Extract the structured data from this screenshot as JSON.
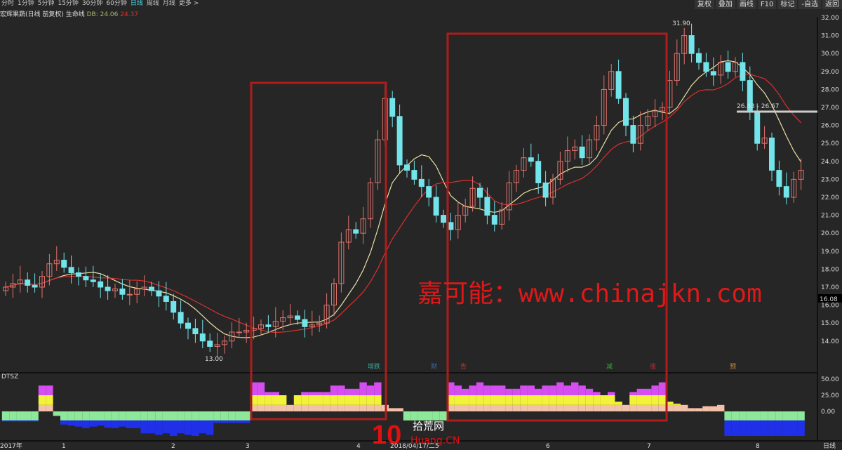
{
  "toolbar": {
    "items": [
      "分时",
      "1分钟",
      "5分钟",
      "15分钟",
      "30分钟",
      "60分钟",
      "日线",
      "周线",
      "月线",
      "更多 >"
    ],
    "active": "日线",
    "right": [
      "复权",
      "叠加",
      "画线",
      "F10",
      "标记",
      "-自选",
      "返回"
    ]
  },
  "info": {
    "title": "宏辉果蔬(日线 前复权) 生命线",
    "ma1": "DB: 24.06",
    "ma2": "24.37"
  },
  "chart_data": {
    "type": "candlestick",
    "closes": [
      17.0,
      17.2,
      17.4,
      17.1,
      17.0,
      17.6,
      18.3,
      18.5,
      18.1,
      17.8,
      17.6,
      17.4,
      17.3,
      17.0,
      16.8,
      16.9,
      16.6,
      16.6,
      16.9,
      17.0,
      16.8,
      16.5,
      16.2,
      15.6,
      15.0,
      14.7,
      14.4,
      14.0,
      13.7,
      13.8,
      14.0,
      14.5,
      14.5,
      14.6,
      14.7,
      14.9,
      14.8,
      15.1,
      15.3,
      15.4,
      15.2,
      14.8,
      14.9,
      15.0,
      16.0,
      17.2,
      19.5,
      20.2,
      20.0,
      20.8,
      22.8,
      25.2,
      27.5,
      26.5,
      23.8,
      23.5,
      23.0,
      22.6,
      22.0,
      21.0,
      20.6,
      20.2,
      21.0,
      21.5,
      22.5,
      22.0,
      21.0,
      20.5,
      21.3,
      22.8,
      23.5,
      24.2,
      24.0,
      22.8,
      22.0,
      23.0,
      24.0,
      24.6,
      24.8,
      24.2,
      25.2,
      26.0,
      28.0,
      29.0,
      27.5,
      26.0,
      25.0,
      26.0,
      26.5,
      26.8,
      27.0,
      28.5,
      30.0,
      31.0,
      30.0,
      29.5,
      29.0,
      28.8,
      29.5,
      29.0,
      29.5,
      28.5,
      26.8,
      25.0,
      25.3,
      23.5,
      22.6,
      22.0,
      23.0,
      23.5
    ],
    "indicator": [
      -12,
      -12,
      -12,
      -12,
      -12,
      40,
      40,
      -5,
      -18,
      -20,
      -22,
      -25,
      -22,
      -20,
      -24,
      -25,
      -22,
      -25,
      -25,
      -35,
      -35,
      -38,
      -35,
      -40,
      -35,
      -38,
      -40,
      -35,
      -38,
      -15,
      -15,
      -15,
      -15,
      -15,
      45,
      45,
      30,
      30,
      25,
      10,
      25,
      30,
      30,
      30,
      30,
      40,
      40,
      35,
      35,
      45,
      40,
      45,
      10,
      5,
      5,
      -10,
      -10,
      -10,
      -10,
      -10,
      -10,
      45,
      40,
      35,
      40,
      45,
      40,
      40,
      40,
      35,
      35,
      40,
      40,
      35,
      40,
      40,
      45,
      40,
      45,
      40,
      35,
      30,
      25,
      30,
      15,
      10,
      30,
      35,
      35,
      40,
      45,
      15,
      12,
      10,
      5,
      5,
      8,
      8,
      10,
      -40,
      -40,
      -40,
      -40,
      -40,
      -40,
      -40,
      -40,
      -40,
      -40,
      -40
    ],
    "y_ticks": [
      "32.00",
      "31.00",
      "30.00",
      "29.00",
      "28.00",
      "27.00",
      "26.00",
      "25.00",
      "24.00",
      "23.00",
      "22.00",
      "21.00",
      "20.00",
      "19.00",
      "18.00",
      "17.00",
      "16.00",
      "15.00",
      "14.00"
    ],
    "ind_ticks": [
      "50.00",
      "25.00",
      "0.00"
    ],
    "ylim": [
      14,
      32
    ],
    "x_labels": [
      "2017年",
      "1",
      "2",
      "3",
      "4",
      "2018/04/17/二",
      "5",
      "6",
      "7",
      "8"
    ],
    "annotations": {
      "high": "31.90",
      "low": "13.00",
      "range": "26.83 - 26.67",
      "current": "16.08",
      "indicator_name": "DTSZ",
      "axis_mode": "日线"
    },
    "events": [
      "增跌",
      "财",
      "告",
      "减",
      "涨",
      "预"
    ]
  },
  "watermark": "嘉可能：www.chinajkn.com",
  "logo": {
    "num": "10",
    "cn": "拾荒网",
    "en": "Huang.CN"
  },
  "colors": {
    "up": "#e0736b",
    "down": "#72e4ea",
    "ma_short": "#e8e0a0",
    "ma_long": "#d83030",
    "box": "#b01c1c"
  }
}
